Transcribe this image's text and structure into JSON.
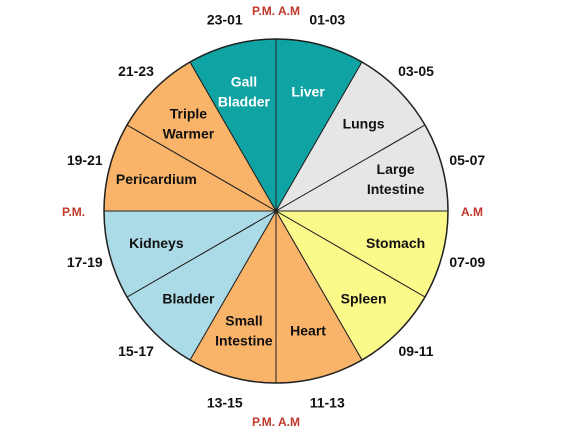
{
  "colors": {
    "liver_gall": "#0fa3a3",
    "lungs_large_intestine": "#e6e6e6",
    "stomach_spleen": "#fbf98a",
    "heart_small_intestine_pericardium_triple": "#f9b46a",
    "kidneys_bladder": "#acdbe8",
    "outline": "#222222",
    "ampm": "#c0392b"
  },
  "segments": [
    {
      "name": "Liver",
      "lines": [
        "Liver"
      ],
      "color_key": "liver_gall",
      "text_color": "#ffffff"
    },
    {
      "name": "Lungs",
      "lines": [
        "Lungs"
      ],
      "color_key": "lungs_large_intestine",
      "text_color": "#111111"
    },
    {
      "name": "Large Intestine",
      "lines": [
        "Large",
        "Intestine"
      ],
      "color_key": "lungs_large_intestine",
      "text_color": "#111111"
    },
    {
      "name": "Stomach",
      "lines": [
        "Stomach"
      ],
      "color_key": "stomach_spleen",
      "text_color": "#111111"
    },
    {
      "name": "Spleen",
      "lines": [
        "Spleen"
      ],
      "color_key": "stomach_spleen",
      "text_color": "#111111"
    },
    {
      "name": "Heart",
      "lines": [
        "Heart"
      ],
      "color_key": "heart_small_intestine_pericardium_triple",
      "text_color": "#111111"
    },
    {
      "name": "Small Intestine",
      "lines": [
        "Small",
        "Intestine"
      ],
      "color_key": "heart_small_intestine_pericardium_triple",
      "text_color": "#111111"
    },
    {
      "name": "Bladder",
      "lines": [
        "Bladder"
      ],
      "color_key": "kidneys_bladder",
      "text_color": "#111111"
    },
    {
      "name": "Kidneys",
      "lines": [
        "Kidneys"
      ],
      "color_key": "kidneys_bladder",
      "text_color": "#111111"
    },
    {
      "name": "Pericardium",
      "lines": [
        "Pericardium"
      ],
      "color_key": "heart_small_intestine_pericardium_triple",
      "text_color": "#111111"
    },
    {
      "name": "Triple Warmer",
      "lines": [
        "Triple",
        "Warmer"
      ],
      "color_key": "heart_small_intestine_pericardium_triple",
      "text_color": "#111111"
    },
    {
      "name": "Gall Bladder",
      "lines": [
        "Gall",
        "Bladder"
      ],
      "color_key": "liver_gall",
      "text_color": "#ffffff"
    }
  ],
  "times": [
    "01-03",
    "03-05",
    "05-07",
    "07-09",
    "09-11",
    "11-13",
    "13-15",
    "15-17",
    "17-19",
    "19-21",
    "21-23",
    "23-01"
  ],
  "ampm": {
    "top": "P.M. A.M",
    "bottom": "P.M. A.M",
    "left": "P.M.",
    "right": "A.M"
  }
}
